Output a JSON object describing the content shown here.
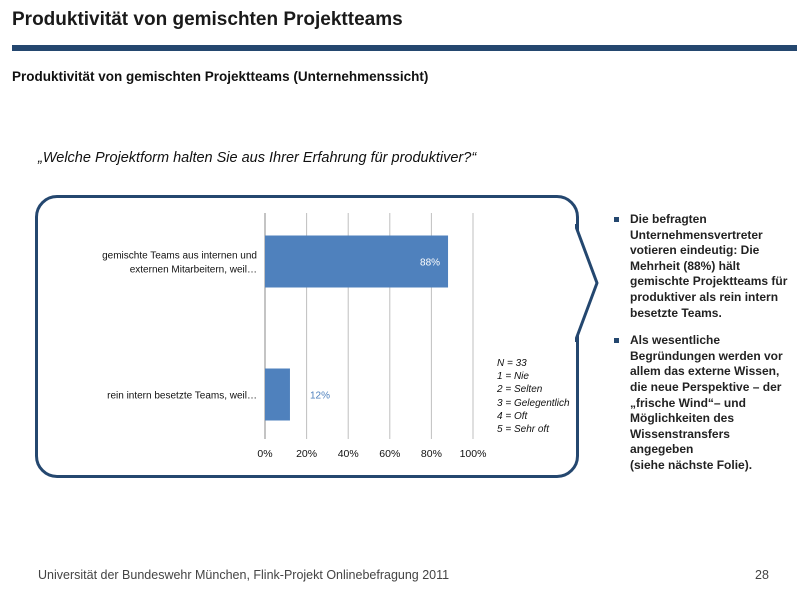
{
  "header": {
    "title": "Produktivität von gemischten Projektteams",
    "subtitle": "Produktivität von gemischten Projektteams (Unternehmenssicht)"
  },
  "question": "„Welche Projektform halten Sie aus Ihrer Erfahrung für produktiver?“",
  "colors": {
    "accent": "#24476f",
    "bar": "#4f81bd",
    "grid": "#bfbfbf"
  },
  "chart_data": {
    "type": "bar",
    "orientation": "horizontal",
    "categories": [
      [
        "gemischte Teams aus internen und",
        "externen Mitarbeitern, weil…"
      ],
      [
        "rein intern besetzte Teams, weil…"
      ]
    ],
    "values": [
      88,
      12
    ],
    "value_labels": [
      "88%",
      "12%"
    ],
    "xlim": [
      0,
      100
    ],
    "xticks": [
      "0%",
      "20%",
      "40%",
      "60%",
      "80%",
      "100%"
    ],
    "grid": true
  },
  "legend": [
    "N = 33",
    "1 = Nie",
    "2 = Selten",
    "3 = Gelegentlich",
    "4 = Oft",
    "5 = Sehr oft"
  ],
  "bullets": [
    {
      "text": "Die befragten Unternehmensvertreter votieren eindeutig: Die Mehrheit (88%) hält gemischte Projektteams für produktiver als rein intern besetzte Teams.",
      "sub": ""
    },
    {
      "text": "Als wesentliche Begründungen werden vor allem das externe Wissen, die neue Perspektive – der „frische Wind“– und Möglichkeiten des Wissenstransfers angegeben",
      "sub": "(siehe nächste Folie)."
    }
  ],
  "footer": {
    "text": "Universität der Bundeswehr München, Flink-Projekt Onlinebefragung  2011",
    "page": "28"
  }
}
